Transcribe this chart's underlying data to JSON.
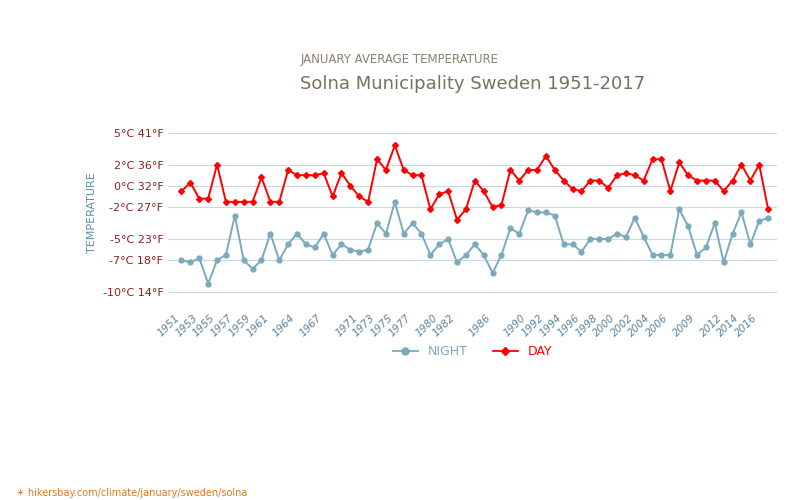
{
  "title": "Solna Municipality Sweden 1951-2017",
  "subtitle": "JANUARY AVERAGE TEMPERATURE",
  "ylabel": "TEMPERATURE",
  "xlabel_url": "☀ hikersbay.com/climate/january/sweden/solna",
  "title_color": "#7a7060",
  "subtitle_color": "#8a8070",
  "ylabel_color": "#5a8fa8",
  "background_color": "#ffffff",
  "grid_color": "#c8d8e4",
  "ylim": [
    -11.5,
    6.5
  ],
  "yticks_c": [
    -10,
    -7,
    -5,
    -2,
    0,
    2,
    5
  ],
  "yticks_f": [
    14,
    18,
    23,
    27,
    32,
    36,
    41
  ],
  "xtick_labels": [
    "1951",
    "1953",
    "1955",
    "1957",
    "1959",
    "1961",
    "1964",
    "1967",
    "1971",
    "1973",
    "1975",
    "1977",
    "1980",
    "1982",
    "1986",
    "1990",
    "1992",
    "1994",
    "1996",
    "1998",
    "2000",
    "2002",
    "2004",
    "2006",
    "2009",
    "2012",
    "2014",
    "2016"
  ],
  "years": [
    1951,
    1952,
    1953,
    1954,
    1955,
    1956,
    1957,
    1958,
    1959,
    1960,
    1961,
    1962,
    1963,
    1964,
    1965,
    1966,
    1967,
    1968,
    1969,
    1970,
    1971,
    1972,
    1973,
    1974,
    1975,
    1976,
    1977,
    1978,
    1979,
    1980,
    1981,
    1982,
    1983,
    1984,
    1985,
    1986,
    1987,
    1988,
    1989,
    1990,
    1991,
    1992,
    1993,
    1994,
    1995,
    1996,
    1997,
    1998,
    1999,
    2000,
    2001,
    2002,
    2003,
    2004,
    2005,
    2006,
    2007,
    2008,
    2009,
    2010,
    2011,
    2012,
    2013,
    2014,
    2015,
    2016,
    2017
  ],
  "day_temps": [
    -0.5,
    0.3,
    -1.2,
    -1.2,
    2.0,
    -1.5,
    -1.5,
    -1.5,
    -1.5,
    0.8,
    -1.5,
    -1.5,
    1.5,
    1.0,
    1.0,
    1.0,
    1.2,
    -1.0,
    1.2,
    0.0,
    -1.0,
    -1.5,
    2.5,
    1.5,
    3.8,
    1.5,
    1.0,
    1.0,
    -2.2,
    -0.8,
    -0.5,
    -3.2,
    -2.2,
    0.5,
    -0.5,
    -2.0,
    -1.8,
    1.5,
    0.5,
    1.5,
    1.5,
    2.8,
    1.5,
    0.5,
    -0.3,
    -0.5,
    0.5,
    0.5,
    -0.2,
    1.0,
    1.2,
    1.0,
    0.5,
    2.5,
    2.5,
    -0.5,
    2.2,
    1.0,
    0.5,
    0.5,
    0.5,
    -0.5,
    0.5,
    2.0,
    0.5,
    2.0,
    -2.2
  ],
  "night_temps": [
    -7.0,
    -7.2,
    -6.8,
    -9.2,
    -7.0,
    -6.5,
    -2.8,
    -7.0,
    -7.8,
    -7.0,
    -4.5,
    -7.0,
    -5.5,
    -4.5,
    -5.5,
    -5.8,
    -4.5,
    -6.5,
    -5.5,
    -6.0,
    -6.2,
    -6.0,
    -3.5,
    -4.5,
    -1.5,
    -4.5,
    -3.5,
    -4.5,
    -6.5,
    -5.5,
    -5.0,
    -7.2,
    -6.5,
    -5.5,
    -6.5,
    -8.2,
    -6.5,
    -4.0,
    -4.5,
    -2.3,
    -2.5,
    -2.5,
    -2.8,
    -5.5,
    -5.5,
    -6.2,
    -5.0,
    -5.0,
    -5.0,
    -4.5,
    -4.8,
    -3.0,
    -4.8,
    -6.5,
    -6.5,
    -6.5,
    -2.2,
    -3.8,
    -6.5,
    -5.8,
    -3.5,
    -7.2,
    -4.5,
    -2.5,
    -5.5,
    -3.3,
    -3.0
  ],
  "day_color": "#ff0000",
  "night_color": "#7aaabb",
  "legend_night_label": "NIGHT",
  "legend_day_label": "DAY",
  "marker_size": 3.5,
  "line_width": 1.4
}
